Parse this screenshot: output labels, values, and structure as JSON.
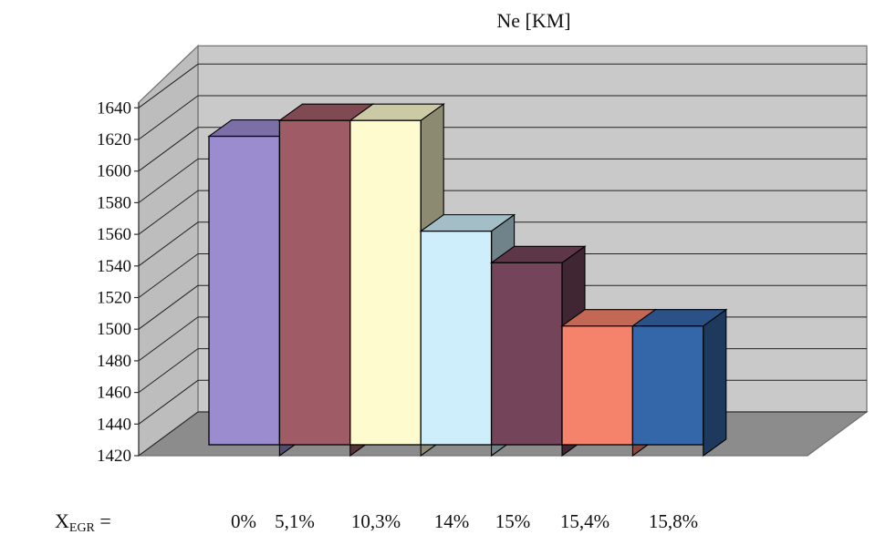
{
  "chart_data": {
    "type": "bar",
    "title": "Ne [KM]",
    "x_prefix": {
      "main": "X",
      "subscript": "EGR",
      "suffix": " ="
    },
    "categories": [
      "0%",
      "5,1%",
      "10,3%",
      "14%",
      "15%",
      "15,4%",
      "15,8%"
    ],
    "values": [
      1622,
      1632,
      1632,
      1562,
      1542,
      1502,
      1502
    ],
    "colors": [
      "#9B8BCF",
      "#A05C66",
      "#FEFCCE",
      "#CDEEFA",
      "#74445A",
      "#F5826B",
      "#3467A9"
    ],
    "ylim": [
      1420,
      1640
    ],
    "yticks": [
      1420,
      1440,
      1460,
      1480,
      1500,
      1520,
      1540,
      1560,
      1580,
      1600,
      1620,
      1640
    ],
    "grid": true,
    "legend": "none",
    "three_d": true
  }
}
